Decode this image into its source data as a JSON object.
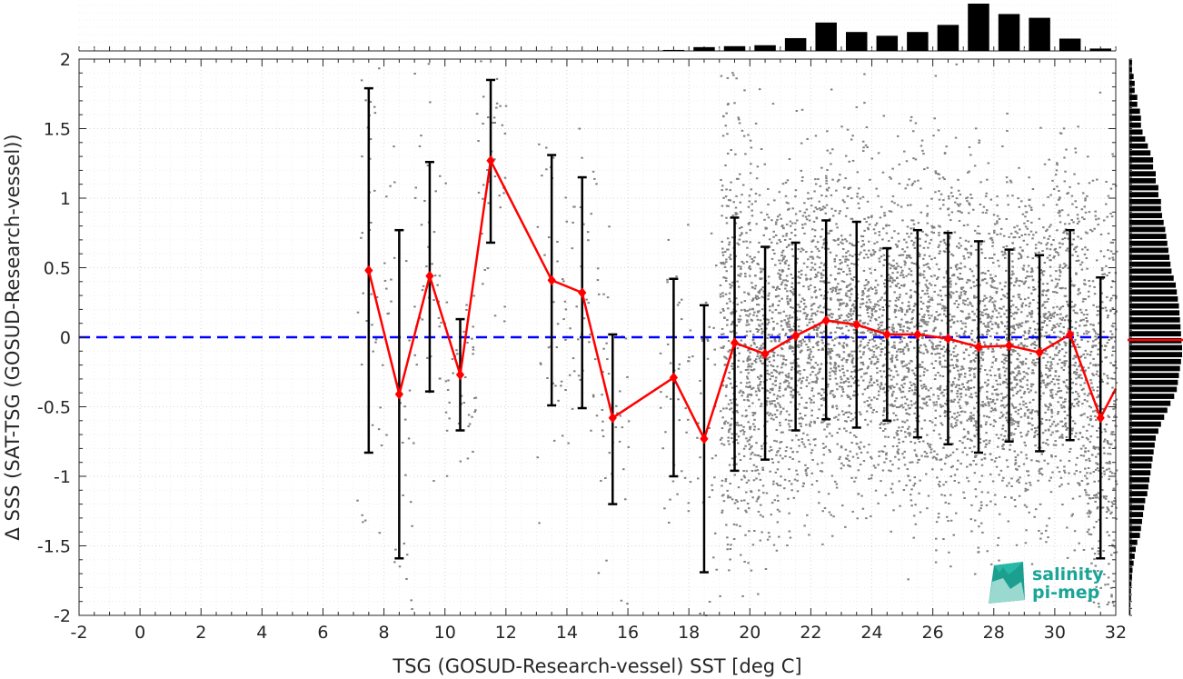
{
  "chart_data": {
    "type": "scatter",
    "xlabel": "TSG (GOSUD-Research-vessel) SST [deg C]",
    "ylabel": "Δ SSS (SAT-TSG (GOSUD-Research-vessel))",
    "xlim": [
      -2,
      32
    ],
    "ylim": [
      -2,
      2
    ],
    "xticks": [
      "-2",
      "0",
      "2",
      "4",
      "6",
      "8",
      "10",
      "12",
      "14",
      "16",
      "18",
      "20",
      "22",
      "24",
      "26",
      "28",
      "30",
      "32"
    ],
    "yticks": [
      "-2",
      "-1.5",
      "-1",
      "-0.5",
      "0",
      "0.5",
      "1",
      "1.5",
      "2"
    ],
    "grid": true,
    "zero_line": {
      "y": 0,
      "color": "#0000ff",
      "style": "dashed"
    },
    "binned_mean": {
      "color": "#ff0000",
      "marker": "diamond",
      "points": [
        {
          "x": 7.5,
          "y": 0.48,
          "low": -0.83,
          "high": 1.79
        },
        {
          "x": 8.5,
          "y": -0.41,
          "low": -1.59,
          "high": 0.77
        },
        {
          "x": 9.5,
          "y": 0.44,
          "low": -0.39,
          "high": 1.26
        },
        {
          "x": 10.5,
          "y": -0.27,
          "low": -0.67,
          "high": 0.13
        },
        {
          "x": 11.5,
          "y": 1.27,
          "low": 0.68,
          "high": 1.85
        },
        {
          "x": 13.5,
          "y": 0.41,
          "low": -0.49,
          "high": 1.31
        },
        {
          "x": 14.5,
          "y": 0.32,
          "low": -0.51,
          "high": 1.15
        },
        {
          "x": 15.5,
          "y": -0.58,
          "low": -1.2,
          "high": 0.02
        },
        {
          "x": 17.5,
          "y": -0.29,
          "low": -1.0,
          "high": 0.42
        },
        {
          "x": 18.5,
          "y": -0.73,
          "low": -1.69,
          "high": 0.23
        },
        {
          "x": 19.5,
          "y": -0.04,
          "low": -0.96,
          "high": 0.86
        },
        {
          "x": 20.5,
          "y": -0.12,
          "low": -0.88,
          "high": 0.65
        },
        {
          "x": 21.5,
          "y": 0.01,
          "low": -0.67,
          "high": 0.68
        },
        {
          "x": 22.5,
          "y": 0.12,
          "low": -0.59,
          "high": 0.84
        },
        {
          "x": 23.5,
          "y": 0.09,
          "low": -0.65,
          "high": 0.83
        },
        {
          "x": 24.5,
          "y": 0.02,
          "low": -0.6,
          "high": 0.64
        },
        {
          "x": 25.5,
          "y": 0.02,
          "low": -0.72,
          "high": 0.77
        },
        {
          "x": 26.5,
          "y": -0.01,
          "low": -0.77,
          "high": 0.75
        },
        {
          "x": 27.5,
          "y": -0.07,
          "low": -0.83,
          "high": 0.69
        },
        {
          "x": 28.5,
          "y": -0.06,
          "low": -0.75,
          "high": 0.63
        },
        {
          "x": 29.5,
          "y": -0.11,
          "low": -0.82,
          "high": 0.59
        },
        {
          "x": 30.5,
          "y": 0.02,
          "low": -0.74,
          "high": 0.77
        },
        {
          "x": 31.5,
          "y": -0.58,
          "low": -1.59,
          "high": 0.43
        },
        {
          "x": 32.0,
          "y": -0.37
        }
      ]
    },
    "scatter_color": "#808080",
    "top_histogram": {
      "bins": [
        17.5,
        18.5,
        19.5,
        20.5,
        21.5,
        22.5,
        23.5,
        24.5,
        25.5,
        26.5,
        27.5,
        28.5,
        29.5,
        30.5,
        31.5
      ],
      "relative_counts": [
        0.02,
        0.08,
        0.1,
        0.12,
        0.27,
        0.6,
        0.4,
        0.32,
        0.4,
        0.55,
        1.0,
        0.78,
        0.7,
        0.26,
        0.05
      ]
    },
    "right_histogram": {
      "bins": [
        1.975,
        1.925,
        1.875,
        1.825,
        1.775,
        1.725,
        1.675,
        1.625,
        1.575,
        1.525,
        1.475,
        1.425,
        1.375,
        1.325,
        1.275,
        1.225,
        1.175,
        1.125,
        1.075,
        1.025,
        0.975,
        0.925,
        0.875,
        0.825,
        0.775,
        0.725,
        0.675,
        0.625,
        0.575,
        0.525,
        0.475,
        0.425,
        0.375,
        0.325,
        0.275,
        0.225,
        0.175,
        0.125,
        0.075,
        0.025,
        -0.025,
        -0.075,
        -0.125,
        -0.175,
        -0.225,
        -0.275,
        -0.325,
        -0.375,
        -0.425,
        -0.475,
        -0.525,
        -0.575,
        -0.625,
        -0.675,
        -0.725,
        -0.775,
        -0.825,
        -0.875,
        -0.925,
        -0.975,
        -1.025,
        -1.075,
        -1.125,
        -1.175,
        -1.225,
        -1.275,
        -1.325,
        -1.375,
        -1.425,
        -1.475,
        -1.525,
        -1.575,
        -1.625,
        -1.675,
        -1.725,
        -1.775,
        -1.825,
        -1.875,
        -1.925,
        -1.975
      ],
      "relative_counts": [
        0.05,
        0.05,
        0.08,
        0.1,
        0.1,
        0.15,
        0.15,
        0.2,
        0.22,
        0.22,
        0.25,
        0.3,
        0.35,
        0.4,
        0.45,
        0.45,
        0.5,
        0.5,
        0.55,
        0.55,
        0.6,
        0.6,
        0.62,
        0.65,
        0.68,
        0.7,
        0.72,
        0.74,
        0.76,
        0.78,
        0.8,
        0.84,
        0.88,
        0.9,
        0.92,
        0.94,
        0.95,
        0.96,
        0.97,
        0.98,
        0.99,
        1.0,
        1.0,
        0.98,
        0.96,
        0.94,
        0.92,
        0.9,
        0.85,
        0.78,
        0.72,
        0.66,
        0.6,
        0.55,
        0.5,
        0.48,
        0.46,
        0.44,
        0.42,
        0.4,
        0.38,
        0.36,
        0.34,
        0.3,
        0.28,
        0.26,
        0.24,
        0.22,
        0.2,
        0.15,
        0.12,
        0.1,
        0.08,
        0.06,
        0.05,
        0.04,
        0.03,
        0.03,
        0.02,
        0.02
      ],
      "mean_marker": {
        "y": -0.02,
        "color": "#ff0000"
      }
    }
  },
  "logo": {
    "line1": "salinity",
    "line2": "pi-mep",
    "color": "#1aa597"
  }
}
